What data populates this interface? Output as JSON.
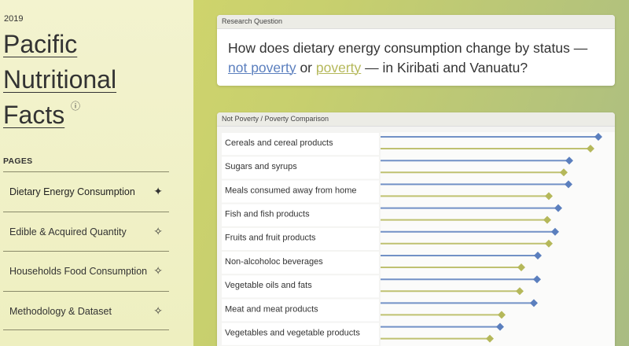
{
  "sidebar": {
    "year": "2019",
    "title_lines": [
      "Pacific",
      "Nutritional",
      "Facts"
    ],
    "info_icon": "ⓘ",
    "pages_heading": "PAGES",
    "pages": [
      {
        "label": "Dietary Energy Consumption",
        "icon": "✦"
      },
      {
        "label": "Edible & Acquired Quantity",
        "icon": "✧"
      },
      {
        "label": "Households Food Consumption",
        "icon": "✧"
      },
      {
        "label": "Methodology & Dataset",
        "icon": "✧"
      }
    ]
  },
  "research": {
    "header": "Research Question",
    "before": "How does dietary energy consumption change by status —",
    "between": "or",
    "after": "— in Kiribati and Vanuatu?"
  },
  "chart_data": {
    "type": "lollipop",
    "orientation": "horizontal",
    "title": "Not Poverty / Poverty Comparison",
    "categories": [
      "Cereals and cereal products",
      "Sugars and syrups",
      "Meals consumed away from home",
      "Fish and fish products",
      "Fruits and fruit products",
      "Non-alcoholoc beverages",
      "Vegetable oils and fats",
      "Meat and meat products",
      "Vegetables and vegetable products"
    ],
    "xlim": [
      0,
      3
    ],
    "series": [
      {
        "name": "not poverty",
        "color": "#5b7fbe",
        "values": [
          2.77,
          2.4,
          2.39,
          2.26,
          2.22,
          2.0,
          1.99,
          1.95,
          1.52
        ]
      },
      {
        "name": "poverty",
        "color": "#b5b85a",
        "values": [
          2.67,
          2.33,
          2.14,
          2.12,
          2.14,
          1.79,
          1.77,
          1.54,
          1.39
        ]
      }
    ]
  }
}
